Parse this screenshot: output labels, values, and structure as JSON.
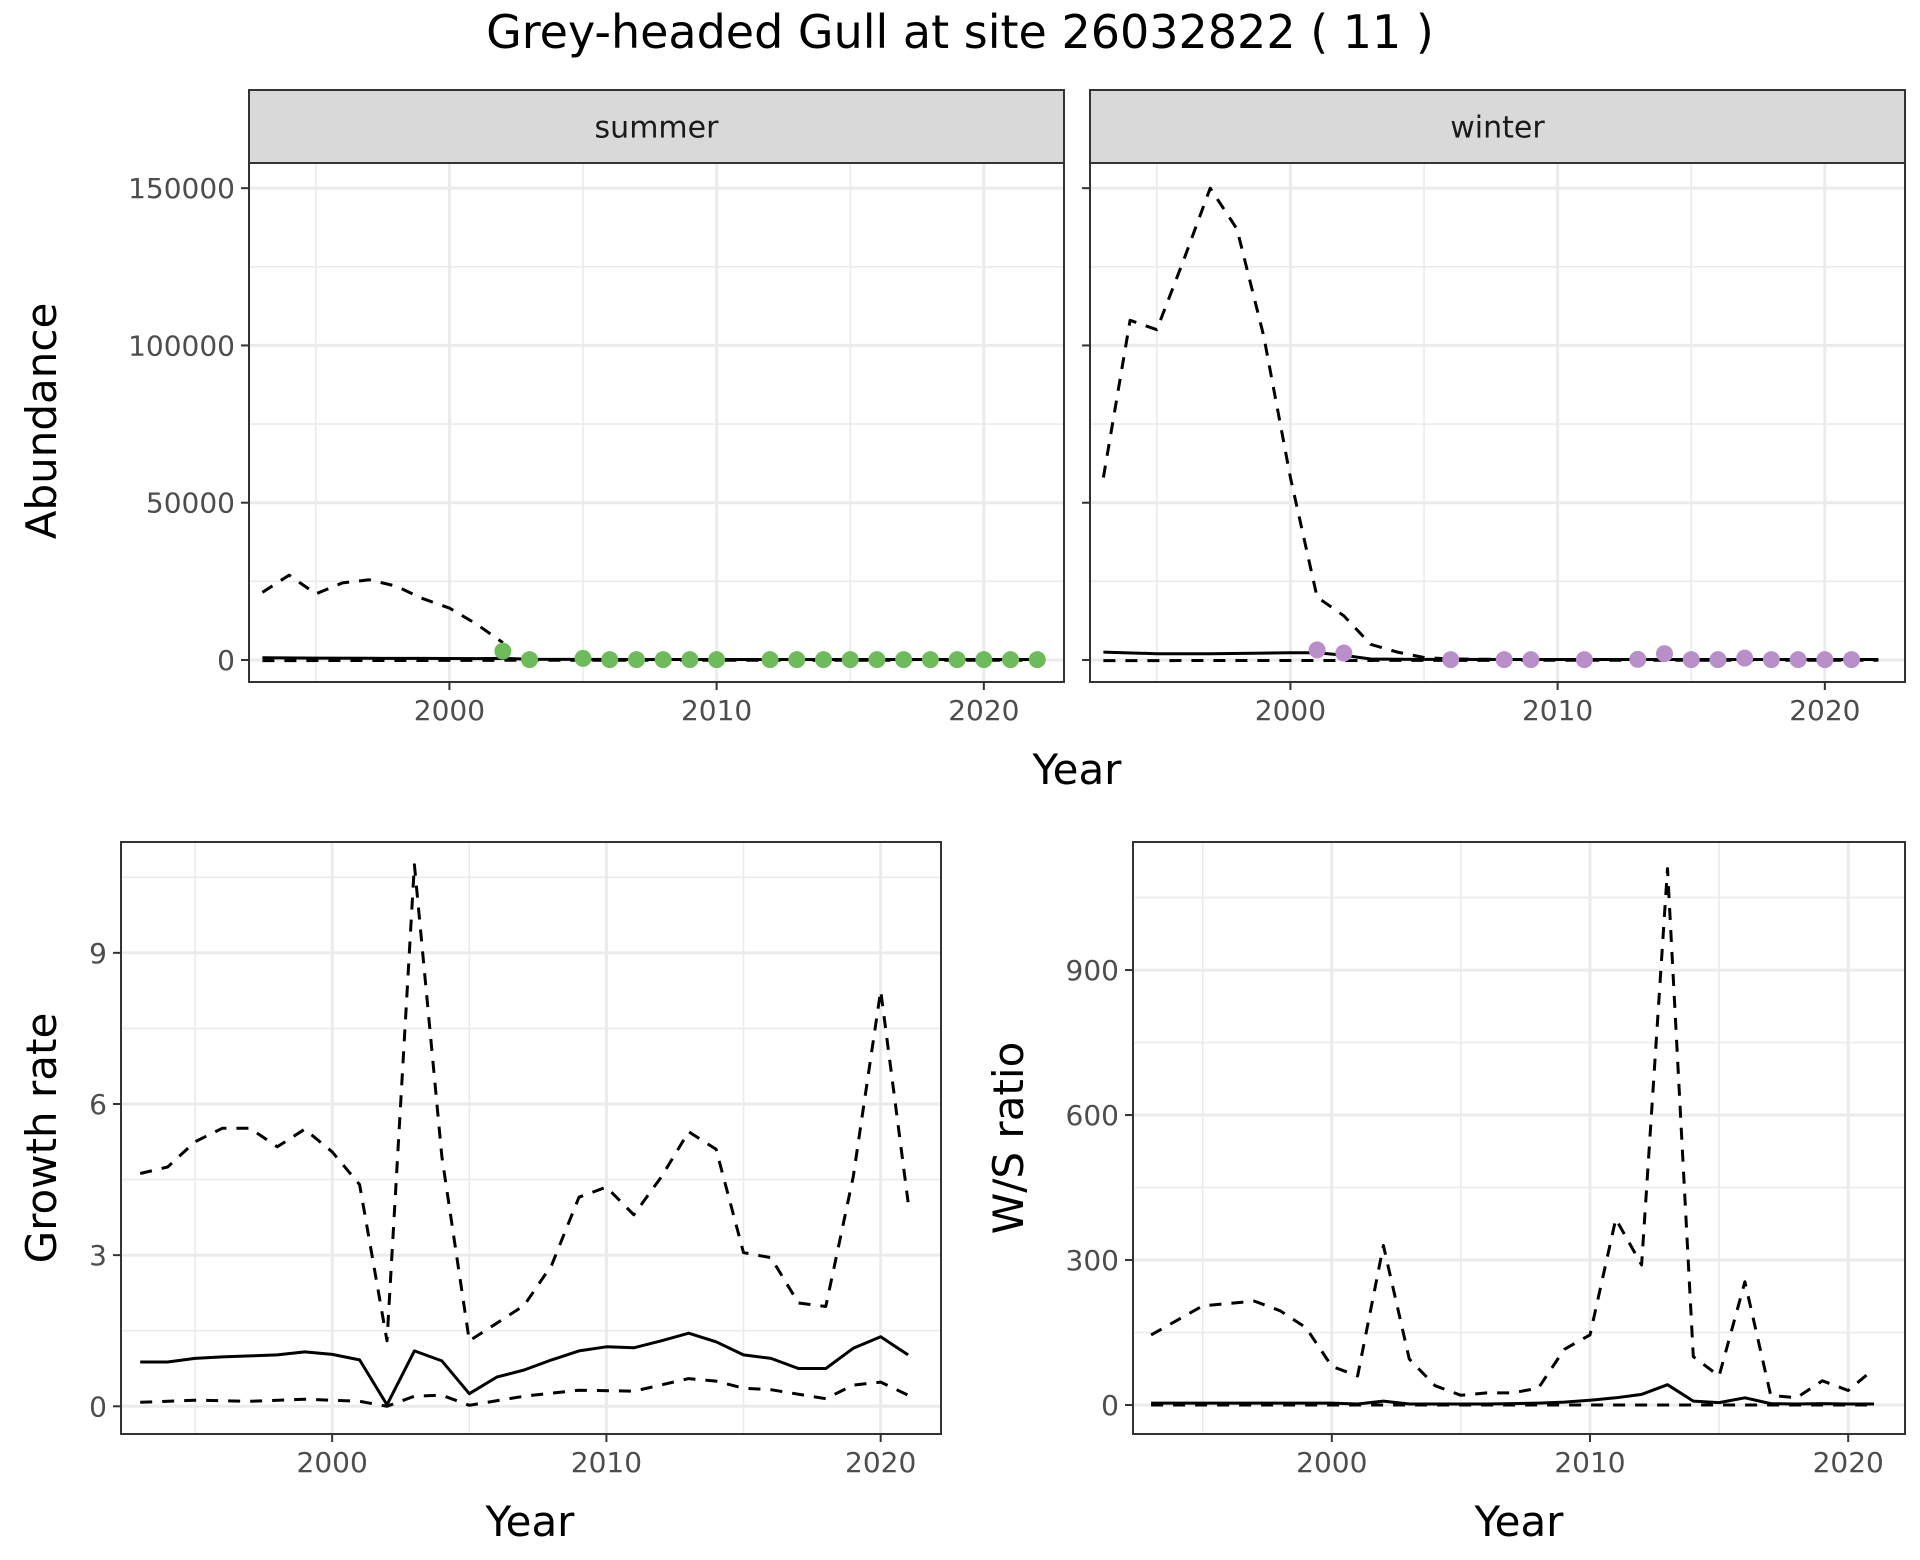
{
  "title": "Grey-headed Gull at site 26032822 ( 11 )",
  "colors": {
    "summer_points": "#6dbb5b",
    "winter_points": "#b88fc9",
    "line": "#000000",
    "grid": "#ebebeb",
    "strip_fill": "#d9d9d9",
    "panel_border": "#333333"
  },
  "chart_data": [
    {
      "type": "line",
      "panel": "summer",
      "strip_label": "summer",
      "xlabel": "Year",
      "ylabel": "Abundance",
      "xlim": [
        1992.5,
        2023
      ],
      "ylim": [
        -7000,
        158000
      ],
      "xticks": [
        2000,
        2010,
        2020
      ],
      "yticks": [
        0,
        50000,
        100000,
        150000
      ],
      "grid": true,
      "series": [
        {
          "style": "solid",
          "x": [
            1993,
            1995,
            1997,
            1999,
            2001,
            2002,
            2003,
            2005,
            2010,
            2015,
            2020,
            2022
          ],
          "y": [
            700,
            600,
            550,
            500,
            450,
            500,
            250,
            200,
            150,
            150,
            150,
            150
          ]
        },
        {
          "style": "dashed",
          "x": [
            1993,
            1994,
            1995,
            1996,
            1997,
            1998,
            1999,
            2000,
            2001,
            2002
          ],
          "y": [
            21500,
            27000,
            21000,
            24500,
            25500,
            23500,
            19500,
            16500,
            11500,
            5500
          ]
        },
        {
          "style": "dashed",
          "x": [
            1993,
            1998,
            2002,
            2010,
            2022
          ],
          "y": [
            -200,
            -150,
            -100,
            -100,
            -100
          ]
        },
        {
          "style": "points",
          "x": [
            2002,
            2003,
            2005,
            2006,
            2007,
            2008,
            2009,
            2010,
            2012,
            2013,
            2014,
            2015,
            2016,
            2017,
            2018,
            2019,
            2020,
            2021,
            2022
          ],
          "y": [
            2800,
            100,
            500,
            100,
            100,
            100,
            100,
            100,
            100,
            100,
            100,
            100,
            100,
            100,
            100,
            100,
            100,
            100,
            100
          ]
        }
      ]
    },
    {
      "type": "line",
      "panel": "winter",
      "strip_label": "winter",
      "xlabel": "Year",
      "ylabel": "Abundance",
      "xlim": [
        1992.5,
        2023
      ],
      "ylim": [
        -7000,
        158000
      ],
      "xticks": [
        2000,
        2010,
        2020
      ],
      "yticks": [
        0,
        50000,
        100000,
        150000
      ],
      "grid": true,
      "series": [
        {
          "style": "solid",
          "x": [
            1993,
            1995,
            1997,
            1999,
            2000,
            2001,
            2002,
            2003,
            2005,
            2010,
            2015,
            2020,
            2022
          ],
          "y": [
            2500,
            2000,
            2000,
            2200,
            2300,
            2300,
            1500,
            300,
            200,
            150,
            150,
            150,
            150
          ]
        },
        {
          "style": "dashed",
          "x": [
            1993,
            1994,
            1995,
            1996,
            1997,
            1998,
            1999,
            2000,
            2001,
            2002,
            2003,
            2004,
            2005,
            2006,
            2008,
            2012,
            2022
          ],
          "y": [
            58000,
            108000,
            105000,
            127000,
            150000,
            137000,
            103000,
            58000,
            20000,
            14000,
            5000,
            2500,
            800,
            300,
            200,
            150,
            150
          ]
        },
        {
          "style": "dashed",
          "x": [
            1993,
            2000,
            2010,
            2022
          ],
          "y": [
            -200,
            -150,
            -100,
            -100
          ]
        },
        {
          "style": "points",
          "x": [
            2001,
            2002,
            2006,
            2008,
            2009,
            2011,
            2013,
            2014,
            2015,
            2016,
            2017,
            2018,
            2019,
            2020,
            2021
          ],
          "y": [
            3200,
            2200,
            100,
            100,
            100,
            100,
            200,
            2000,
            100,
            100,
            600,
            100,
            100,
            100,
            100
          ]
        }
      ]
    },
    {
      "type": "line",
      "panel": "growth",
      "xlabel": "Year",
      "ylabel": "Growth rate",
      "xlim": [
        1992.3,
        2022.2
      ],
      "ylim": [
        -0.55,
        11.2
      ],
      "xticks": [
        2000,
        2010,
        2020
      ],
      "yticks": [
        0,
        3,
        6,
        9
      ],
      "grid": true,
      "series": [
        {
          "style": "solid",
          "x": [
            1993,
            1994,
            1995,
            1996,
            1997,
            1998,
            1999,
            2000,
            2001,
            2002,
            2003,
            2004,
            2005,
            2006,
            2007,
            2008,
            2009,
            2010,
            2011,
            2012,
            2013,
            2014,
            2015,
            2016,
            2017,
            2018,
            2019,
            2020,
            2021
          ],
          "y": [
            0.88,
            0.88,
            0.95,
            0.98,
            1.0,
            1.02,
            1.08,
            1.03,
            0.92,
            0.03,
            1.1,
            0.9,
            0.25,
            0.58,
            0.72,
            0.92,
            1.1,
            1.18,
            1.16,
            1.3,
            1.45,
            1.28,
            1.02,
            0.95,
            0.75,
            0.75,
            1.15,
            1.38,
            1.02
          ]
        },
        {
          "style": "dashed",
          "x": [
            1993,
            1994,
            1995,
            1996,
            1997,
            1998,
            1999,
            2000,
            2001,
            2002,
            2003,
            2004,
            2005,
            2006,
            2007,
            2008,
            2009,
            2010,
            2011,
            2012,
            2013,
            2014,
            2015,
            2016,
            2017,
            2018,
            2019,
            2020,
            2021
          ],
          "y": [
            4.62,
            4.75,
            5.25,
            5.52,
            5.52,
            5.15,
            5.5,
            5.05,
            4.4,
            1.3,
            10.75,
            4.95,
            1.3,
            1.65,
            2.0,
            2.8,
            4.15,
            4.35,
            3.8,
            4.55,
            5.45,
            5.1,
            3.05,
            2.95,
            2.05,
            1.98,
            4.55,
            8.25,
            4.05
          ]
        },
        {
          "style": "dashed",
          "x": [
            1993,
            1995,
            1997,
            1999,
            2001,
            2002,
            2003,
            2004,
            2005,
            2007,
            2009,
            2011,
            2013,
            2014,
            2015,
            2016,
            2018,
            2019,
            2020,
            2021
          ],
          "y": [
            0.08,
            0.12,
            0.1,
            0.14,
            0.1,
            0.0,
            0.2,
            0.22,
            0.02,
            0.2,
            0.32,
            0.3,
            0.55,
            0.5,
            0.36,
            0.33,
            0.15,
            0.42,
            0.48,
            0.22
          ]
        }
      ]
    },
    {
      "type": "line",
      "panel": "ratio",
      "xlabel": "Year",
      "ylabel": "W/S ratio",
      "xlim": [
        1992.3,
        2022.2
      ],
      "ylim": [
        -60,
        1165
      ],
      "xticks": [
        2000,
        2010,
        2020
      ],
      "yticks": [
        0,
        300,
        600,
        900
      ],
      "grid": true,
      "series": [
        {
          "style": "solid",
          "x": [
            1993,
            1995,
            2000,
            2001,
            2002,
            2003,
            2004,
            2005,
            2006,
            2007,
            2008,
            2009,
            2010,
            2011,
            2012,
            2013,
            2014,
            2015,
            2016,
            2017,
            2018,
            2019,
            2020,
            2021
          ],
          "y": [
            4,
            4,
            4,
            2,
            8,
            2,
            2,
            2,
            2,
            3,
            4,
            6,
            10,
            15,
            22,
            42,
            8,
            5,
            15,
            3,
            2,
            3,
            2,
            2
          ]
        },
        {
          "style": "dashed",
          "x": [
            1993,
            1994,
            1995,
            1996,
            1997,
            1998,
            1999,
            2000,
            2001,
            2002,
            2003,
            2004,
            2005,
            2006,
            2007,
            2008,
            2009,
            2010,
            2011,
            2012,
            2013,
            2014,
            2015,
            2016,
            2017,
            2018,
            2019,
            2020,
            2021
          ],
          "y": [
            145,
            175,
            205,
            210,
            215,
            195,
            160,
            80,
            60,
            330,
            95,
            40,
            20,
            25,
            25,
            35,
            115,
            145,
            385,
            290,
            1110,
            100,
            60,
            255,
            20,
            15,
            50,
            30,
            75
          ]
        },
        {
          "style": "dashed",
          "x": [
            1993,
            2000,
            2010,
            2021
          ],
          "y": [
            0,
            0,
            0,
            0
          ]
        }
      ]
    }
  ]
}
